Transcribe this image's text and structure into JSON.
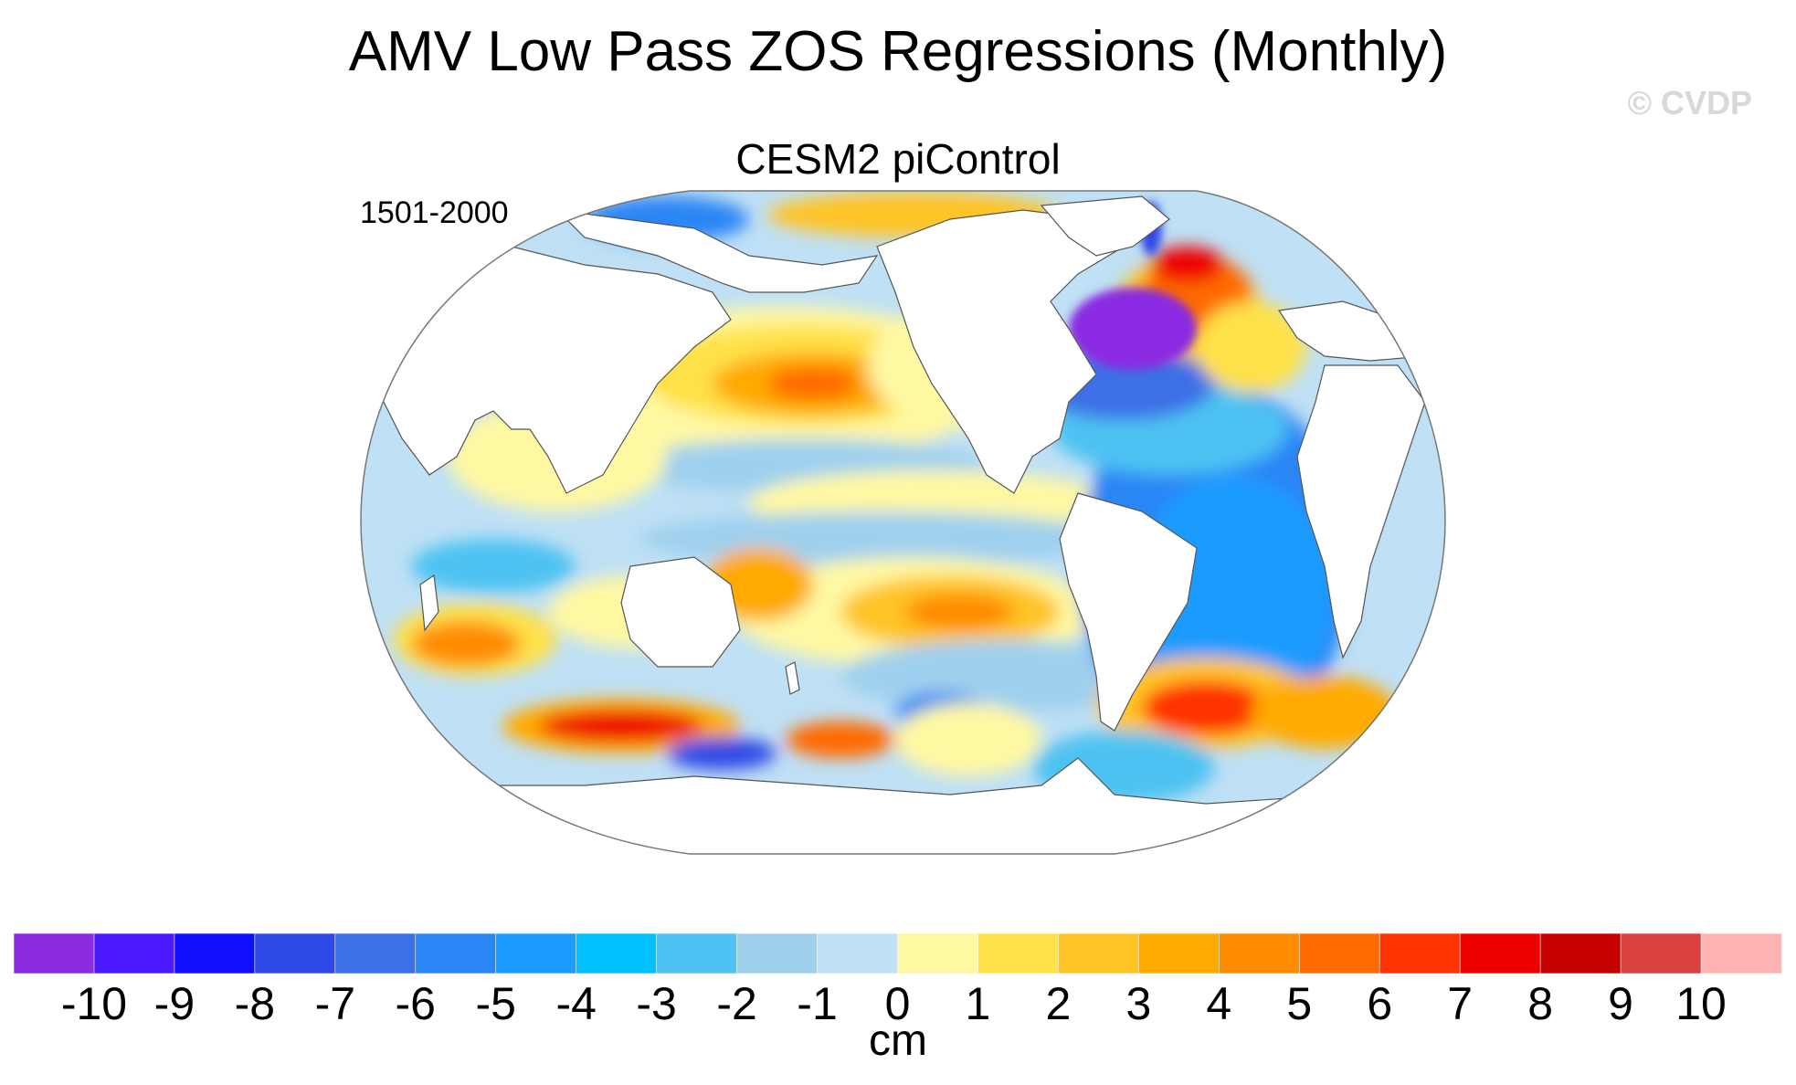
{
  "figure": {
    "title": "AMV Low Pass ZOS Regressions (Monthly)",
    "watermark": "© CVDP",
    "subtitle": "CESM2 piControl",
    "period": "1501-2000"
  },
  "colorbar": {
    "units": "cm",
    "ticks": [
      "-10",
      "-9",
      "-8",
      "-7",
      "-6",
      "-5",
      "-4",
      "-3",
      "-2",
      "-1",
      "0",
      "1",
      "2",
      "3",
      "4",
      "5",
      "6",
      "7",
      "8",
      "9",
      "10"
    ],
    "colors": [
      "#8a2be2",
      "#4b1aff",
      "#1010ff",
      "#2e49e6",
      "#3d6fe6",
      "#2a85f5",
      "#1e9bff",
      "#00c0ff",
      "#4ec2f2",
      "#9fd0ee",
      "#bfe0f5",
      "#fff8a3",
      "#ffe14a",
      "#ffc425",
      "#ffaa00",
      "#ff8c00",
      "#ff6a00",
      "#ff3300",
      "#ee0000",
      "#c40000",
      "#d94040",
      "#ffb3b3"
    ]
  },
  "map_patches": [
    {
      "name": "labrador-sea-negative",
      "color": "#8a2be2"
    },
    {
      "name": "gulf-stream-extension-negative",
      "color": "#3d6fe6"
    },
    {
      "name": "north-atlantic-positive",
      "color": "#ee0000"
    },
    {
      "name": "kuroshio-extension-positive",
      "color": "#ff6a00"
    },
    {
      "name": "south-pacific-positive",
      "color": "#ff8c00"
    },
    {
      "name": "southern-ocean-indian-positive",
      "color": "#ee0000"
    },
    {
      "name": "south-atlantic-positive",
      "color": "#ff3300"
    },
    {
      "name": "south-atlantic-negative",
      "color": "#2a85f5"
    }
  ]
}
